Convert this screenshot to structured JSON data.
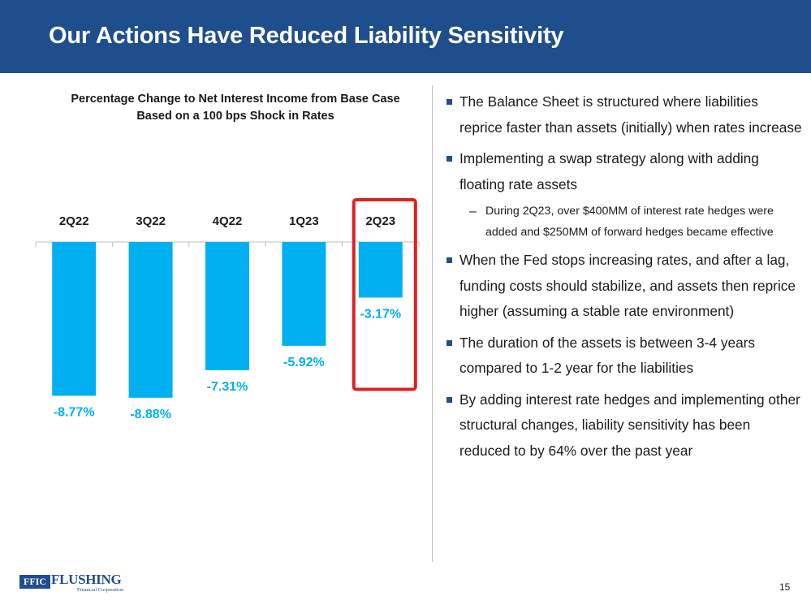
{
  "header": {
    "title": "Our Actions Have Reduced Liability Sensitivity"
  },
  "chart_data": {
    "type": "bar",
    "title": "Percentage Change to Net Interest Income from Base Case",
    "subtitle": "Based on a 100 bps Shock in Rates",
    "categories": [
      "2Q22",
      "3Q22",
      "4Q22",
      "1Q23",
      "2Q23"
    ],
    "values": [
      -8.77,
      -8.88,
      -7.31,
      -5.92,
      -3.17
    ],
    "data_labels": [
      "-8.77%",
      "-8.88%",
      "-7.31%",
      "-5.92%",
      "-3.17%"
    ],
    "ylim": [
      -10,
      0
    ],
    "xlabel": "",
    "ylabel": "",
    "highlighted_category": "2Q23",
    "bar_color": "#00b0f0",
    "label_color": "#00b0f0",
    "highlight_color": "#e02020"
  },
  "bullets": [
    {
      "text": "The Balance Sheet is structured where liabilities reprice faster than assets (initially) when rates increase"
    },
    {
      "text": "Implementing a swap strategy along with adding floating rate assets",
      "sub": "During 2Q23, over $400MM of interest rate hedges were added and $250MM of forward hedges became effective"
    },
    {
      "text": "When the Fed stops increasing rates, and after a lag, funding costs should stabilize, and assets then reprice higher (assuming a stable rate environment)"
    },
    {
      "text": "The duration of the assets is between 3-4 years compared to 1-2 year for the liabilities"
    },
    {
      "text": "By adding interest rate hedges and implementing other structural changes, liability sensitivity has been reduced to by 64% over the past year"
    }
  ],
  "footer": {
    "logo_box": "FFIC",
    "logo_name": "FLUSHING",
    "logo_sub": "Financial Corporation",
    "page_number": "15"
  },
  "colors": {
    "brand": "#1f4e8c"
  }
}
